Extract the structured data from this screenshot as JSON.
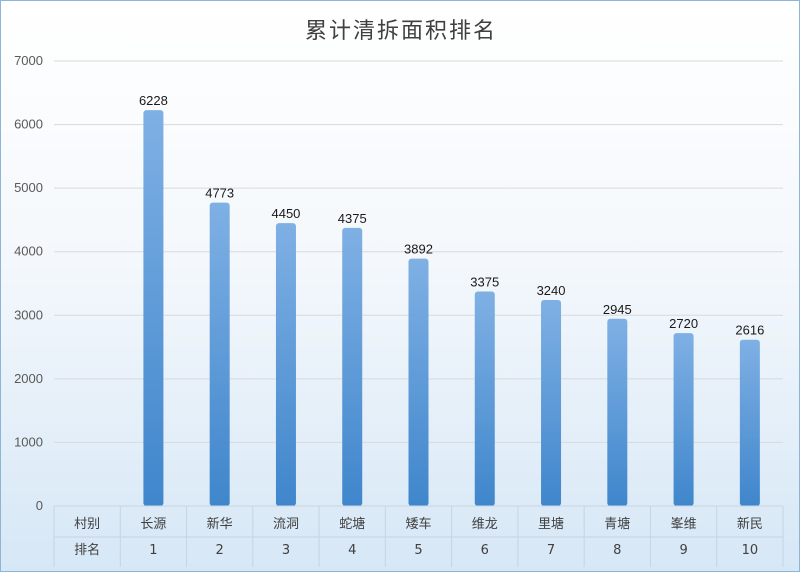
{
  "chart_data": {
    "type": "bar",
    "title": "累计清拆面积排名",
    "xlabel": "",
    "ylabel": "",
    "ylim": [
      0,
      7000
    ],
    "yticks": [
      0,
      1000,
      2000,
      3000,
      4000,
      5000,
      6000,
      7000
    ],
    "grid": true,
    "legend": "none",
    "table_header": {
      "row1": "村别",
      "row2": "排名"
    },
    "categories": [
      "长源",
      "新华",
      "流洞",
      "蛇塘",
      "矮车",
      "维龙",
      "里塘",
      "青塘",
      "峯维",
      "新民"
    ],
    "ranks": [
      "1",
      "2",
      "3",
      "4",
      "5",
      "6",
      "7",
      "8",
      "9",
      "10"
    ],
    "values": [
      6228,
      4773,
      4450,
      4375,
      3892,
      3375,
      3240,
      2945,
      2720,
      2616
    ],
    "colors": {
      "bar_top": "#7fb0e4",
      "bar_bottom": "#3f86cc",
      "grid": "#d9d9d9",
      "table_border": "#c7d4e2"
    }
  }
}
